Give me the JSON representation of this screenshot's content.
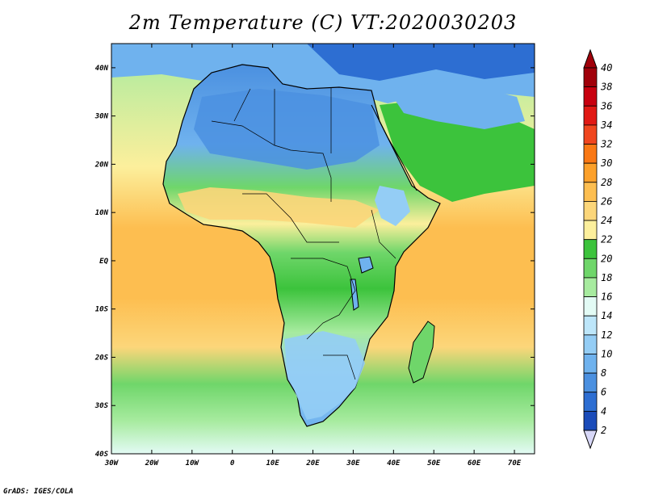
{
  "title": "2m Temperature (C) VT:2020030203",
  "credit": "GrADS: IGES/COLA",
  "map": {
    "lon_range": [
      -30,
      75
    ],
    "lat_range": [
      -40,
      45
    ],
    "lon_ticks": [
      "30W",
      "20W",
      "10W",
      "0",
      "10E",
      "20E",
      "30E",
      "40E",
      "50E",
      "60E",
      "70E"
    ],
    "lat_ticks": [
      "40N",
      "30N",
      "20N",
      "10N",
      "EQ",
      "10S",
      "20S",
      "30S",
      "40S"
    ]
  },
  "colorbar": {
    "labels": [
      "40",
      "38",
      "36",
      "34",
      "32",
      "30",
      "28",
      "26",
      "24",
      "22",
      "20",
      "18",
      "16",
      "14",
      "12",
      "10",
      "8",
      "6",
      "4",
      "2"
    ],
    "colors": [
      "#a0000a",
      "#c8000f",
      "#e11914",
      "#f0461e",
      "#fa7814",
      "#fca02a",
      "#fdbe50",
      "#fcd67a",
      "#fcef9c",
      "#3cc33c",
      "#6fd66a",
      "#a7eb9f",
      "#e3fbf5",
      "#bde6fa",
      "#94cdf5",
      "#6fb2ee",
      "#4b90e0",
      "#2d6ed2",
      "#1a4bb9",
      "#0f2a8c"
    ],
    "over_color": "#a0000a",
    "under_color": "#d7d7f7"
  }
}
